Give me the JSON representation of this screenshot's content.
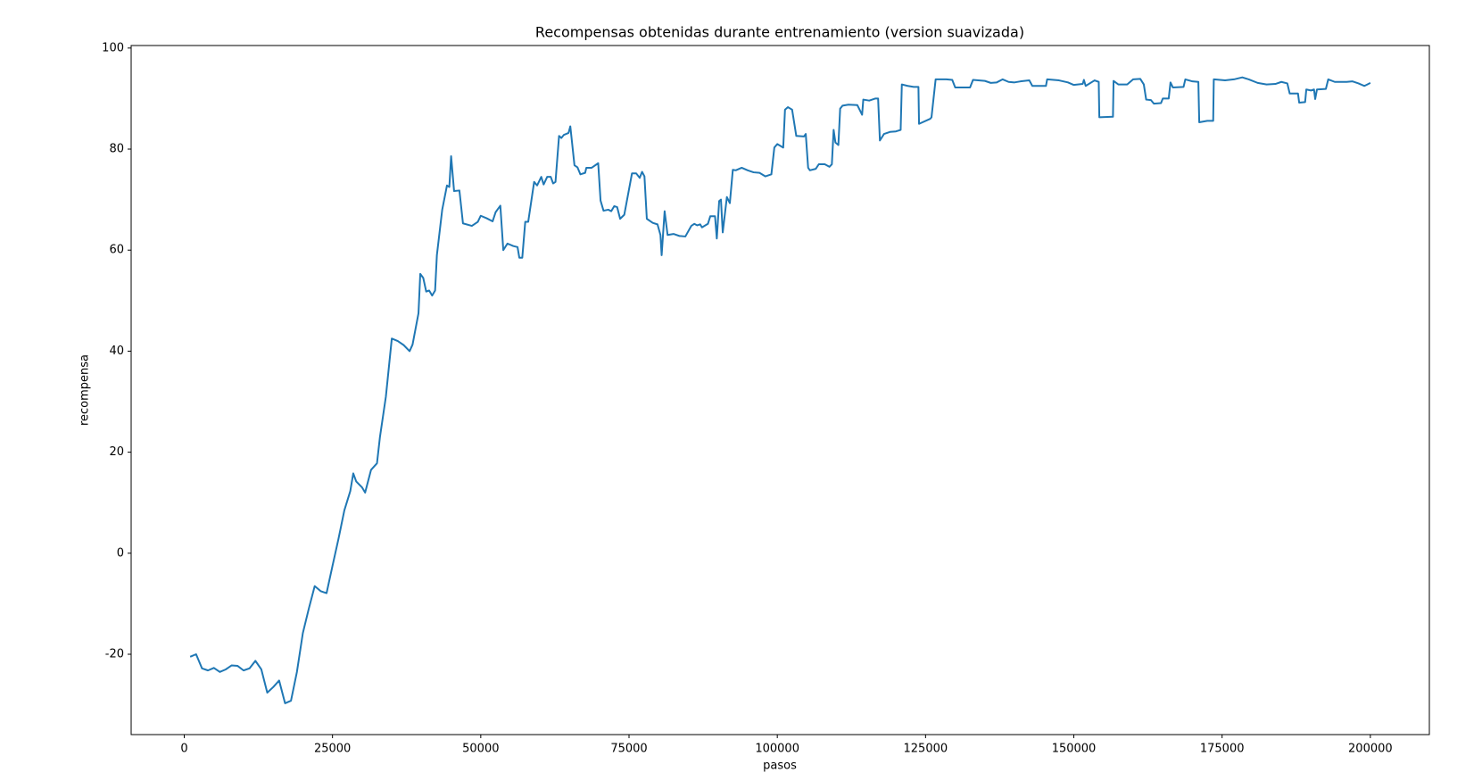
{
  "chart_data": {
    "type": "line",
    "title": "Recompensas obtenidas durante entrenamiento (version suavizada)",
    "x_label": "pasos",
    "y_label": "recompensa",
    "color": "#1f77b4",
    "xlim": [
      -8950,
      209950
    ],
    "ylim": [
      -35.9,
      100.5
    ],
    "xticks": [
      0,
      25000,
      50000,
      75000,
      100000,
      125000,
      150000,
      175000,
      200000
    ],
    "yticks": [
      -20,
      0,
      20,
      40,
      60,
      80,
      100
    ],
    "grid": false,
    "x": [
      1000,
      2000,
      3000,
      4000,
      5000,
      6000,
      7000,
      8000,
      9000,
      10000,
      11000,
      12000,
      13000,
      14000,
      15000,
      16000,
      17000,
      18000,
      19000,
      20000,
      21000,
      22000,
      23000,
      24000,
      25000,
      26000,
      27000,
      28000,
      28500,
      29000,
      30000,
      30500,
      31500,
      32500,
      33000,
      34000,
      35000,
      36000,
      37000,
      38000,
      38500,
      39500,
      39800,
      40300,
      40800,
      41300,
      41800,
      42300,
      42600,
      43500,
      44300,
      44700,
      45000,
      45500,
      46400,
      47000,
      48500,
      49500,
      50000,
      51000,
      52000,
      52500,
      53300,
      53800,
      54500,
      55500,
      56200,
      56500,
      57000,
      57500,
      58000,
      59000,
      59500,
      60200,
      60600,
      61200,
      61800,
      62200,
      62600,
      63200,
      63600,
      64000,
      64800,
      65100,
      65800,
      66300,
      66800,
      67600,
      67800,
      68700,
      69800,
      70200,
      70700,
      71500,
      72000,
      72500,
      73000,
      73500,
      74200,
      75500,
      76200,
      76800,
      77200,
      77600,
      78000,
      79000,
      79800,
      80300,
      80500,
      81000,
      81500,
      82500,
      83500,
      84500,
      85500,
      86000,
      86500,
      87000,
      87300,
      88300,
      88700,
      89500,
      89800,
      90200,
      90500,
      90800,
      91500,
      92000,
      92500,
      93000,
      94000,
      95000,
      96000,
      97000,
      98000,
      99000,
      99500,
      100000,
      101000,
      101300,
      101800,
      102500,
      103200,
      104500,
      104800,
      105200,
      105500,
      106500,
      107000,
      108000,
      108800,
      109200,
      109500,
      109800,
      110300,
      110600,
      111000,
      112000,
      113500,
      114300,
      114500,
      115500,
      116500,
      117000,
      117300,
      118000,
      119000,
      120000,
      120800,
      121000,
      122000,
      123000,
      123800,
      123900,
      125800,
      126000,
      126700,
      128500,
      129500,
      130000,
      132500,
      133000,
      135000,
      136000,
      137000,
      138000,
      139000,
      140000,
      141000,
      142500,
      143000,
      145300,
      145500,
      147500,
      149000,
      150000,
      151500,
      151700,
      152000,
      153500,
      154200,
      154300,
      156600,
      156700,
      157500,
      159000,
      160000,
      161200,
      161800,
      162200,
      163000,
      163500,
      164700,
      165000,
      166000,
      166300,
      166700,
      168500,
      168800,
      170000,
      171000,
      171150,
      172500,
      173500,
      173600,
      175500,
      177000,
      178400,
      179500,
      181000,
      182500,
      184000,
      185000,
      186000,
      186400,
      187800,
      188000,
      189000,
      189200,
      190000,
      190500,
      190700,
      191000,
      192500,
      192900,
      194000,
      196000,
      197000,
      198000,
      199000,
      199500,
      200000
    ],
    "values": [
      -20.5,
      -20,
      -22.8,
      -23.2,
      -22.7,
      -23.5,
      -23,
      -22.2,
      -22.3,
      -23.2,
      -22.8,
      -21.3,
      -23,
      -27.6,
      -26.5,
      -25.2,
      -29.7,
      -29.2,
      -23.5,
      -15.8,
      -11,
      -6.5,
      -7.5,
      -7.9,
      -2.5,
      2.8,
      8.5,
      12.3,
      15.8,
      14.2,
      13,
      12,
      16.5,
      17.8,
      23,
      31,
      42.5,
      42,
      41.2,
      40,
      41.3,
      47.5,
      55.3,
      54.5,
      51.8,
      52,
      51,
      52,
      59,
      68,
      72.8,
      72.5,
      78.6,
      71.7,
      71.8,
      65.3,
      64.8,
      65.6,
      66.8,
      66.3,
      65.7,
      67.5,
      68.8,
      60,
      61.3,
      60.8,
      60.6,
      58.5,
      58.5,
      65.6,
      65.6,
      73.5,
      72.8,
      74.5,
      73,
      74.5,
      74.5,
      73.2,
      73.5,
      82.6,
      82.2,
      82.8,
      83.2,
      84.5,
      76.8,
      76.4,
      75,
      75.3,
      76.3,
      76.3,
      77.2,
      69.8,
      67.8,
      68,
      67.7,
      68.7,
      68.5,
      66.2,
      67,
      75.2,
      75.2,
      74.3,
      75.5,
      74.6,
      66.2,
      65.4,
      65.1,
      63,
      59,
      67.7,
      63,
      63.2,
      62.8,
      62.7,
      64.8,
      65.2,
      64.9,
      65.1,
      64.5,
      65.2,
      66.7,
      66.7,
      62.3,
      69.7,
      70,
      63.5,
      70.5,
      69.3,
      75.9,
      75.8,
      76.3,
      75.8,
      75.4,
      75.3,
      74.6,
      75,
      80.3,
      81,
      80.3,
      87.8,
      88.3,
      87.8,
      82.6,
      82.5,
      83,
      76.3,
      75.8,
      76.1,
      77,
      77,
      76.5,
      77,
      83.8,
      81.3,
      80.8,
      88,
      88.6,
      88.8,
      88.7,
      86.8,
      89.8,
      89.6,
      90,
      90,
      81.7,
      83,
      83.4,
      83.5,
      83.8,
      92.8,
      92.5,
      92.3,
      92.3,
      85,
      86,
      86.3,
      93.8,
      93.8,
      93.7,
      92.2,
      92.2,
      93.7,
      93.5,
      93.1,
      93.2,
      93.8,
      93.3,
      93.2,
      93.4,
      93.6,
      92.5,
      92.5,
      93.8,
      93.6,
      93.2,
      92.7,
      92.9,
      93.7,
      92.5,
      93.6,
      93.3,
      86.3,
      86.4,
      93.5,
      92.8,
      92.8,
      93.8,
      93.9,
      92.8,
      89.8,
      89.7,
      89,
      89.1,
      90,
      90,
      93.2,
      92.2,
      92.3,
      93.8,
      93.4,
      93.3,
      85.3,
      85.6,
      85.6,
      93.8,
      93.6,
      93.8,
      94.2,
      93.8,
      93.1,
      92.8,
      92.9,
      93.3,
      93,
      91,
      91,
      89.2,
      89.3,
      91.8,
      91.6,
      91.8,
      89.9,
      91.8,
      91.9,
      93.8,
      93.3,
      93.3,
      93.4,
      93,
      92.5,
      92.8,
      93.1
    ]
  }
}
